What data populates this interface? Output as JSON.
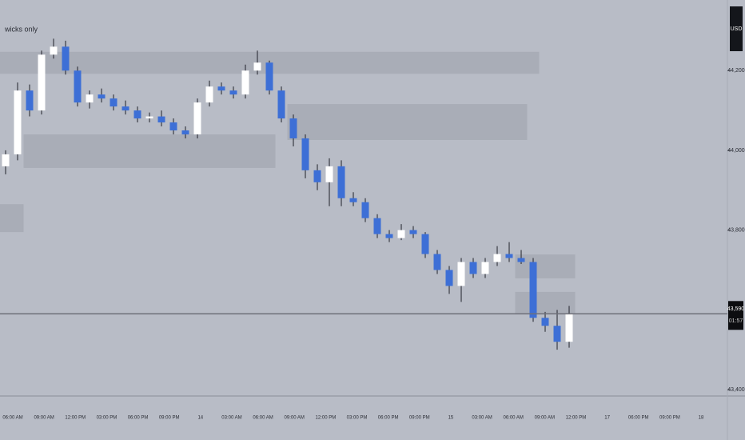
{
  "chart_data": {
    "type": "candlestick",
    "indicator": "wicks only",
    "currency": "USD",
    "last_price": {
      "value": 43590,
      "label": "43,590"
    },
    "countdown": "01:57",
    "up_color": "#ffffff",
    "down_color": "#3d6fd6",
    "ylim": [
      43384,
      44377
    ],
    "yticks": [
      {
        "value": 44200,
        "label": "44,200"
      },
      {
        "value": 44000,
        "label": "44,000"
      },
      {
        "value": 43800,
        "label": "43,800"
      },
      {
        "value": 43400,
        "label": "43,400"
      }
    ],
    "xticks": [
      "06:00 AM",
      "09:00 AM",
      "12:00 PM",
      "03:00 PM",
      "06:00 PM",
      "09:00 PM",
      "14",
      "03:00 AM",
      "06:00 AM",
      "09:00 AM",
      "12:00 PM",
      "03:00 PM",
      "06:00 PM",
      "09:00 PM",
      "15",
      "03:00 AM",
      "06:00 AM",
      "09:00 AM",
      "12:00 PM",
      "17",
      "06:00 PM",
      "09:00 PM",
      "18"
    ],
    "open": [
      43960,
      43990,
      44150,
      44100,
      44240,
      44260,
      44200,
      44120,
      44140,
      44130,
      44110,
      44100,
      44080,
      44085,
      44070,
      44050,
      44040,
      44120,
      44160,
      44150,
      44140,
      44200,
      44220,
      44150,
      44080,
      44030,
      43950,
      43920,
      43960,
      43880,
      43870,
      43830,
      43790,
      43780,
      43800,
      43790,
      43740,
      43700,
      43660,
      43720,
      43690,
      43720,
      43740,
      43730,
      43720,
      43580,
      43560,
      43520
    ],
    "high": [
      44000,
      44170,
      44165,
      44250,
      44280,
      44275,
      44210,
      44150,
      44155,
      44140,
      44125,
      44110,
      44095,
      44100,
      44080,
      44060,
      44130,
      44175,
      44170,
      44160,
      44215,
      44250,
      44225,
      44160,
      44090,
      44040,
      43965,
      43980,
      43975,
      43895,
      43880,
      43840,
      43800,
      43815,
      43810,
      43795,
      43750,
      43710,
      43730,
      43730,
      43730,
      43760,
      43770,
      43750,
      43730,
      43595,
      43600,
      43610
    ],
    "low": [
      43940,
      43975,
      44085,
      44090,
      44230,
      44190,
      44110,
      44105,
      44120,
      44100,
      44090,
      44070,
      44070,
      44060,
      44040,
      44030,
      44030,
      44110,
      44140,
      44130,
      44130,
      44190,
      44140,
      44070,
      44010,
      43930,
      43900,
      43860,
      43860,
      43860,
      43820,
      43780,
      43770,
      43775,
      43780,
      43730,
      43690,
      43640,
      43620,
      43680,
      43680,
      43710,
      43720,
      43715,
      43570,
      43545,
      43500,
      43505
    ],
    "close": [
      43990,
      44150,
      44100,
      44240,
      44260,
      44200,
      44120,
      44140,
      44130,
      44110,
      44100,
      44080,
      44085,
      44070,
      44050,
      44040,
      44120,
      44160,
      44150,
      44140,
      44200,
      44220,
      44150,
      44080,
      44030,
      43950,
      43920,
      43960,
      43880,
      43870,
      43830,
      43790,
      43780,
      43800,
      43790,
      43740,
      43700,
      43660,
      43720,
      43690,
      43720,
      43740,
      43730,
      43720,
      43580,
      43560,
      43520,
      43590
    ],
    "zones": [
      {
        "start": 0,
        "end": 44,
        "low": 44192,
        "high": 44247
      },
      {
        "start": 24,
        "end": 43,
        "low": 44026,
        "high": 44116
      },
      {
        "start": 2,
        "end": 22,
        "low": 43956,
        "high": 44040
      },
      {
        "start": 0,
        "end": 1,
        "low": 43795,
        "high": 43865
      },
      {
        "start": 43,
        "end": 47,
        "low": 43679,
        "high": 43739
      },
      {
        "start": 43,
        "end": 47,
        "low": 43591,
        "high": 43645
      }
    ]
  }
}
